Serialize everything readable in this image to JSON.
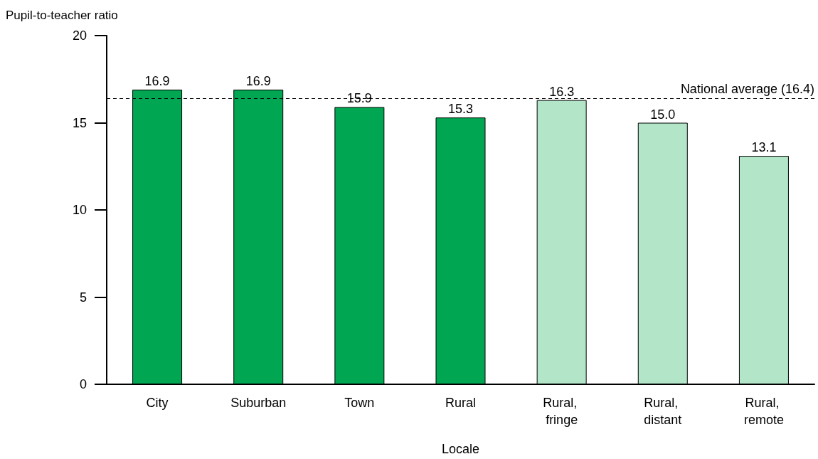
{
  "chart_data": {
    "type": "bar",
    "ylabel": "Pupil-to-teacher ratio",
    "xlabel": "Locale",
    "categories": [
      "City",
      "Suburban",
      "Town",
      "Rural",
      "Rural, fringe",
      "Rural, distant",
      "Rural, remote"
    ],
    "values": [
      16.9,
      16.9,
      15.9,
      15.3,
      16.3,
      15.0,
      13.1
    ],
    "value_labels": [
      "16.9",
      "16.9",
      "15.9",
      "15.3",
      "16.3",
      "15.0",
      "13.1"
    ],
    "colors": [
      "#00a651",
      "#00a651",
      "#00a651",
      "#00a651",
      "#b3e6c9",
      "#b3e6c9",
      "#b3e6c9"
    ],
    "ylim": [
      0,
      20
    ],
    "yticks": [
      0,
      5,
      10,
      15,
      20
    ],
    "ref_lines": [
      {
        "axis": "y",
        "value": 16.4,
        "label": "National average (16.4)",
        "color": "#000000",
        "line_style": "dashed"
      }
    ],
    "grid": false
  }
}
